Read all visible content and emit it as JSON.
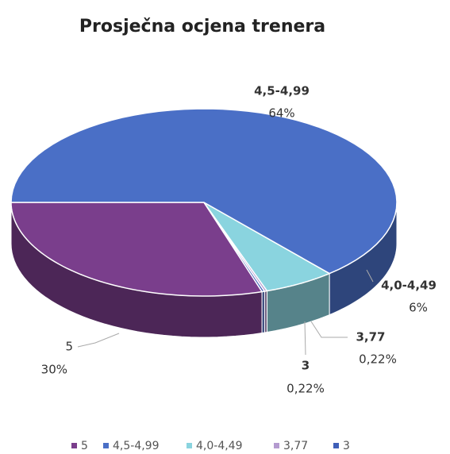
{
  "chart_data": {
    "type": "pie3d",
    "title": "Prosječna ocjena trenera",
    "categories": [
      "5",
      "4,5-4,99",
      "4,0-4,49",
      "3,77",
      "3"
    ],
    "values": [
      30,
      64,
      6,
      0.22,
      0.22
    ],
    "value_labels": [
      "30%",
      "64%",
      "6%",
      "0,22%",
      "0,22%"
    ],
    "colors": [
      "#7a3e8c",
      "#4a6fc6",
      "#8ad4df",
      "#b49bd0",
      "#3f5fb8"
    ],
    "legend": "bottom"
  }
}
